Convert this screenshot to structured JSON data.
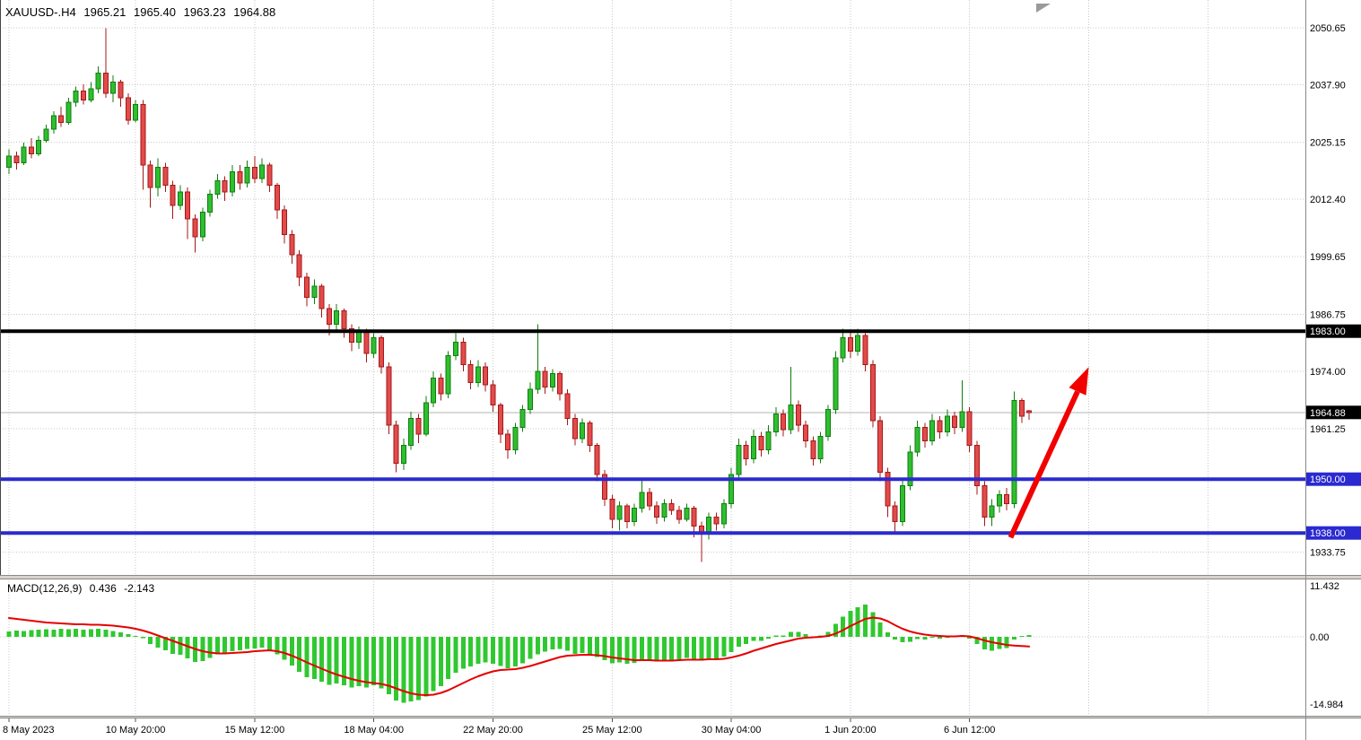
{
  "header": {
    "symbol_period": "XAUUSD-.H4",
    "open": "1965.21",
    "high": "1965.40",
    "low": "1963.23",
    "close": "1964.88"
  },
  "chart_data": {
    "type": "candlestick",
    "symbol": "XAUUSD",
    "timeframe": "H4",
    "legend_position": "none",
    "grid": true,
    "price_ylim": [
      1928.65,
      2056.85
    ],
    "x_axis": {
      "labels": [
        {
          "i": 0,
          "t": "8 May 2023",
          "anchor": "start"
        },
        {
          "i": 17,
          "t": "10 May 20:00"
        },
        {
          "i": 33,
          "t": "15 May 12:00"
        },
        {
          "i": 49,
          "t": "18 May 04:00"
        },
        {
          "i": 65,
          "t": "22 May 20:00"
        },
        {
          "i": 81,
          "t": "25 May 12:00"
        },
        {
          "i": 97,
          "t": "30 May 04:00"
        },
        {
          "i": 113,
          "t": "1 Jun 20:00"
        },
        {
          "i": 129,
          "t": "6 Jun 12:00"
        }
      ],
      "extra_grid_indices": [
        145,
        161
      ]
    },
    "y_axis": {
      "labels": [
        {
          "p": 2050.65,
          "t": "2050.65"
        },
        {
          "p": 2037.9,
          "t": "2037.90"
        },
        {
          "p": 2025.15,
          "t": "2025.15"
        },
        {
          "p": 2012.4,
          "t": "2012.40"
        },
        {
          "p": 1999.65,
          "t": "1999.65"
        },
        {
          "p": 1986.75,
          "t": "1986.75"
        },
        {
          "p": 1974.0,
          "t": "1974.00"
        },
        {
          "p": 1961.25,
          "t": "1961.25"
        },
        {
          "p": 1933.75,
          "t": "1933.75"
        }
      ]
    },
    "price_lines": [
      {
        "p": 1983.0,
        "t": "1983.00",
        "color": "#000000"
      },
      {
        "p": 1950.0,
        "t": "1950.00",
        "color": "#2A2AD0"
      },
      {
        "p": 1938.0,
        "t": "1938.00",
        "color": "#2A2AD0"
      }
    ],
    "current_price": {
      "p": 1964.88,
      "t": "1964.88",
      "box_color": "#000000"
    },
    "candles": [
      [
        2019.5,
        2023.5,
        2018,
        2022
      ],
      [
        2022,
        2023,
        2019,
        2020.5
      ],
      [
        2020.5,
        2025,
        2020,
        2024
      ],
      [
        2024,
        2026,
        2021.5,
        2022.5
      ],
      [
        2022.5,
        2026.5,
        2022,
        2025.5
      ],
      [
        2025.5,
        2029,
        2025,
        2028
      ],
      [
        2028,
        2032,
        2027,
        2031
      ],
      [
        2031,
        2033,
        2028.5,
        2029.5
      ],
      [
        2029.5,
        2035,
        2029,
        2034
      ],
      [
        2034,
        2037.5,
        2033,
        2036.5
      ],
      [
        2036.5,
        2038,
        2033.5,
        2034.5
      ],
      [
        2034.5,
        2038.5,
        2034,
        2037
      ],
      [
        2037,
        2042,
        2036,
        2040.5
      ],
      [
        2040.5,
        2050.5,
        2035,
        2036
      ],
      [
        2036,
        2040,
        2034,
        2038.5
      ],
      [
        2038.5,
        2039,
        2033,
        2035
      ],
      [
        2035,
        2036,
        2029,
        2030
      ],
      [
        2030,
        2034.5,
        2029.5,
        2033.5
      ],
      [
        2033.5,
        2034.5,
        2014.5,
        2020
      ],
      [
        2020,
        2021,
        2010.5,
        2015
      ],
      [
        2015,
        2021.5,
        2013,
        2019.5
      ],
      [
        2019.5,
        2020.5,
        2014,
        2015.5
      ],
      [
        2015.5,
        2016.5,
        2008,
        2011
      ],
      [
        2011,
        2015.5,
        2010,
        2014
      ],
      [
        2014,
        2015,
        2003.5,
        2008
      ],
      [
        2008,
        2009,
        2000.5,
        2004
      ],
      [
        2004,
        2010.5,
        2003,
        2009.5
      ],
      [
        2009.5,
        2014.5,
        2008.5,
        2013.5
      ],
      [
        2013.5,
        2018,
        2012.5,
        2016.5
      ],
      [
        2016.5,
        2017.5,
        2012,
        2014
      ],
      [
        2014,
        2020,
        2013,
        2018.5
      ],
      [
        2018.5,
        2020,
        2014.5,
        2016
      ],
      [
        2016,
        2021,
        2015,
        2019.5
      ],
      [
        2019.5,
        2022,
        2016,
        2017
      ],
      [
        2017,
        2021.5,
        2016,
        2020
      ],
      [
        2020,
        2020.5,
        2014,
        2015.5
      ],
      [
        2015.5,
        2016,
        2008,
        2010
      ],
      [
        2010,
        2011,
        2002.5,
        2004.5
      ],
      [
        2004.5,
        2005.5,
        1998,
        2000
      ],
      [
        2000,
        2001,
        1993,
        1995
      ],
      [
        1995,
        1996,
        1988.5,
        1990.5
      ],
      [
        1990.5,
        1994.5,
        1989,
        1993
      ],
      [
        1993,
        1993.5,
        1986,
        1988
      ],
      [
        1988,
        1989,
        1982,
        1984.5
      ],
      [
        1984.5,
        1989,
        1983,
        1987.5
      ],
      [
        1987.5,
        1988,
        1981.5,
        1983.5
      ],
      [
        1983.5,
        1984.5,
        1978.5,
        1980.5
      ],
      [
        1980.5,
        1984,
        1979,
        1983
      ],
      [
        1983,
        1983.5,
        1976,
        1978
      ],
      [
        1978,
        1982.5,
        1977,
        1981.5
      ],
      [
        1981.5,
        1982,
        1973.5,
        1975
      ],
      [
        1975,
        1976,
        1960,
        1962
      ],
      [
        1962,
        1963,
        1951.5,
        1953.5
      ],
      [
        1953.5,
        1959,
        1952,
        1957.5
      ],
      [
        1957.5,
        1965,
        1956.5,
        1963.5
      ],
      [
        1963.5,
        1964.5,
        1958,
        1960
      ],
      [
        1960,
        1968.5,
        1959.5,
        1967
      ],
      [
        1967,
        1974,
        1966,
        1972.5
      ],
      [
        1972.5,
        1973.5,
        1967.5,
        1969
      ],
      [
        1969,
        1978.5,
        1968,
        1977.5
      ],
      [
        1977.5,
        1982.5,
        1976.5,
        1980.5
      ],
      [
        1980.5,
        1981.5,
        1974,
        1975.5
      ],
      [
        1975.5,
        1976.5,
        1970,
        1971.5
      ],
      [
        1971.5,
        1976.5,
        1970.5,
        1975
      ],
      [
        1975,
        1976,
        1969.5,
        1971
      ],
      [
        1971,
        1972,
        1965,
        1966.5
      ],
      [
        1966.5,
        1967,
        1958,
        1960
      ],
      [
        1960,
        1961,
        1954.5,
        1956.5
      ],
      [
        1956.5,
        1962.5,
        1955.5,
        1961.5
      ],
      [
        1961.5,
        1966.5,
        1960.5,
        1965.5
      ],
      [
        1965.5,
        1971.5,
        1964.5,
        1970
      ],
      [
        1970,
        1984.5,
        1969,
        1974
      ],
      [
        1974,
        1975,
        1969,
        1970.5
      ],
      [
        1970.5,
        1974.5,
        1969.5,
        1973.5
      ],
      [
        1973.5,
        1974,
        1967.5,
        1969
      ],
      [
        1969,
        1970,
        1962,
        1963.5
      ],
      [
        1963.5,
        1964.5,
        1957.5,
        1959
      ],
      [
        1959,
        1963.5,
        1958,
        1962.5
      ],
      [
        1962.5,
        1963,
        1956,
        1957.5
      ],
      [
        1957.5,
        1958,
        1949.5,
        1951
      ],
      [
        1951,
        1952,
        1944,
        1945.5
      ],
      [
        1945.5,
        1946.5,
        1939,
        1941
      ],
      [
        1941,
        1945,
        1938.5,
        1944
      ],
      [
        1944,
        1944.5,
        1939,
        1940.5
      ],
      [
        1940.5,
        1944.5,
        1939.5,
        1943.5
      ],
      [
        1943.5,
        1950,
        1942.5,
        1947
      ],
      [
        1947,
        1948,
        1943,
        1944
      ],
      [
        1944,
        1945,
        1940,
        1941.5
      ],
      [
        1941.5,
        1945.5,
        1940.5,
        1944.5
      ],
      [
        1944.5,
        1945.5,
        1942,
        1943
      ],
      [
        1943,
        1944,
        1940,
        1941
      ],
      [
        1941,
        1944.5,
        1940.5,
        1943.5
      ],
      [
        1943.5,
        1944,
        1937,
        1939.5
      ],
      [
        1939.5,
        1940.5,
        1931.5,
        1938
      ],
      [
        1938,
        1942.5,
        1936.5,
        1941.5
      ],
      [
        1941.5,
        1942.5,
        1938.5,
        1940
      ],
      [
        1940,
        1945.5,
        1939,
        1944.5
      ],
      [
        1944.5,
        1952.5,
        1943.5,
        1951
      ],
      [
        1951,
        1959,
        1950,
        1957.5
      ],
      [
        1957.5,
        1958.5,
        1953,
        1954.5
      ],
      [
        1954.5,
        1961,
        1953.5,
        1959.5
      ],
      [
        1959.5,
        1960.5,
        1955,
        1956.5
      ],
      [
        1956.5,
        1962,
        1955.5,
        1960.5
      ],
      [
        1960.5,
        1966,
        1959.5,
        1964.5
      ],
      [
        1964.5,
        1965.5,
        1959.5,
        1961
      ],
      [
        1961,
        1975,
        1960,
        1966.5
      ],
      [
        1966.5,
        1967.5,
        1960.5,
        1962
      ],
      [
        1962,
        1963,
        1957,
        1958.5
      ],
      [
        1958.5,
        1959.5,
        1953,
        1954.5
      ],
      [
        1954.5,
        1960.5,
        1953.5,
        1959.5
      ],
      [
        1959.5,
        1966.5,
        1958.5,
        1965.5
      ],
      [
        1965.5,
        1978.5,
        1964.5,
        1977
      ],
      [
        1977,
        1983.5,
        1976,
        1981.5
      ],
      [
        1981.5,
        1983,
        1977,
        1978.5
      ],
      [
        1978.5,
        1983.5,
        1977.5,
        1982
      ],
      [
        1982,
        1982.5,
        1974,
        1975.5
      ],
      [
        1975.5,
        1976.5,
        1961.5,
        1963
      ],
      [
        1963,
        1964,
        1949.5,
        1951.5
      ],
      [
        1951.5,
        1952.5,
        1941.5,
        1944
      ],
      [
        1944,
        1945,
        1938,
        1940.5
      ],
      [
        1940.5,
        1950,
        1939.5,
        1948.5
      ],
      [
        1948.5,
        1957.5,
        1947.5,
        1956
      ],
      [
        1956,
        1963,
        1955,
        1961.5
      ],
      [
        1961.5,
        1962.5,
        1957,
        1958.5
      ],
      [
        1958.5,
        1964.5,
        1957.5,
        1963
      ],
      [
        1963,
        1964,
        1959,
        1960.5
      ],
      [
        1960.5,
        1965.5,
        1959.5,
        1964
      ],
      [
        1964,
        1965,
        1960,
        1961.5
      ],
      [
        1961.5,
        1972,
        1960.5,
        1965
      ],
      [
        1965,
        1966,
        1956,
        1957.5
      ],
      [
        1957.5,
        1958.5,
        1946.5,
        1948.5
      ],
      [
        1948.5,
        1949.5,
        1939.5,
        1941.5
      ],
      [
        1941.5,
        1945.5,
        1939.5,
        1944
      ],
      [
        1944,
        1947.5,
        1942.5,
        1946.5
      ],
      [
        1946.5,
        1948,
        1943,
        1944.5
      ],
      [
        1944.5,
        1969.5,
        1943.5,
        1967.5
      ],
      [
        1967.5,
        1968,
        1962.5,
        1964
      ],
      [
        1965.21,
        1965.4,
        1963.23,
        1964.88
      ]
    ],
    "macd": {
      "name": "MACD(12,26,9)",
      "value_main": "0.436",
      "value_signal": "-2.143",
      "ylim": [
        -17.6,
        12.6
      ],
      "y_labels": [
        {
          "v": 11.432,
          "t": "11.432"
        },
        {
          "v": 0,
          "t": "0.00"
        },
        {
          "v": -14.984,
          "t": "-14.984"
        }
      ],
      "histogram": [
        1.2,
        1.4,
        1.3,
        1.5,
        1.6,
        1.7,
        1.6,
        1.8,
        1.7,
        1.8,
        1.6,
        1.7,
        1.8,
        1.6,
        1.3,
        1.0,
        0.6,
        0.2,
        -0.3,
        -1.6,
        -2.4,
        -3.0,
        -3.8,
        -4.0,
        -4.8,
        -5.6,
        -5.4,
        -4.7,
        -3.9,
        -3.7,
        -3.2,
        -3.0,
        -2.7,
        -2.6,
        -2.4,
        -2.9,
        -3.9,
        -5.1,
        -6.4,
        -7.8,
        -9.0,
        -9.4,
        -10.0,
        -10.7,
        -10.4,
        -10.8,
        -11.3,
        -11.0,
        -11.3,
        -10.8,
        -11.5,
        -12.8,
        -14.2,
        -14.7,
        -14.4,
        -14.1,
        -13.3,
        -12.1,
        -11.0,
        -9.4,
        -8.0,
        -7.1,
        -6.6,
        -6.0,
        -5.7,
        -6.0,
        -6.5,
        -7.0,
        -6.6,
        -5.9,
        -4.9,
        -3.9,
        -3.3,
        -2.8,
        -2.7,
        -3.1,
        -3.8,
        -3.6,
        -3.9,
        -4.5,
        -5.2,
        -5.9,
        -5.7,
        -6.0,
        -5.8,
        -5.3,
        -5.2,
        -5.5,
        -5.2,
        -5.3,
        -5.0,
        -4.7,
        -5.0,
        -5.3,
        -4.8,
        -4.9,
        -4.4,
        -3.4,
        -2.2,
        -1.6,
        -0.9,
        -0.9,
        -0.4,
        0.3,
        0.3,
        1.1,
        1.1,
        0.6,
        0.1,
        0.3,
        1.1,
        2.9,
        4.5,
        5.8,
        6.6,
        7.2,
        5.5,
        3.2,
        1.0,
        -0.6,
        -1.2,
        -1.1,
        -0.5,
        -0.6,
        -0.2,
        -0.4,
        0.0,
        0.1,
        0.4,
        -0.4,
        -1.6,
        -2.8,
        -3.1,
        -2.7,
        -2.5,
        -0.6,
        0.2,
        0.436
      ],
      "signal": [
        4.2,
        4.0,
        3.8,
        3.6,
        3.4,
        3.2,
        3.1,
        3.0,
        2.9,
        2.8,
        2.8,
        2.7,
        2.7,
        2.6,
        2.5,
        2.3,
        2.1,
        1.8,
        1.4,
        0.9,
        0.3,
        -0.3,
        -0.9,
        -1.5,
        -2.1,
        -2.7,
        -3.2,
        -3.5,
        -3.7,
        -3.7,
        -3.6,
        -3.5,
        -3.4,
        -3.2,
        -3.1,
        -3.0,
        -3.2,
        -3.6,
        -4.2,
        -4.9,
        -5.7,
        -6.4,
        -7.1,
        -7.8,
        -8.4,
        -8.9,
        -9.4,
        -9.8,
        -10.1,
        -10.3,
        -10.5,
        -10.9,
        -11.5,
        -12.1,
        -12.6,
        -12.9,
        -13.0,
        -12.9,
        -12.5,
        -11.9,
        -11.1,
        -10.3,
        -9.5,
        -8.8,
        -8.2,
        -7.7,
        -7.4,
        -7.3,
        -7.2,
        -6.9,
        -6.5,
        -6.0,
        -5.5,
        -5.0,
        -4.5,
        -4.2,
        -4.1,
        -4.0,
        -4.0,
        -4.1,
        -4.3,
        -4.6,
        -4.8,
        -5.0,
        -5.2,
        -5.2,
        -5.2,
        -5.3,
        -5.3,
        -5.3,
        -5.2,
        -5.1,
        -5.1,
        -5.1,
        -5.0,
        -5.0,
        -4.9,
        -4.6,
        -4.2,
        -3.7,
        -3.1,
        -2.6,
        -2.1,
        -1.6,
        -1.2,
        -0.8,
        -0.4,
        -0.2,
        -0.1,
        0.0,
        0.2,
        0.7,
        1.5,
        2.4,
        3.2,
        4.0,
        4.3,
        4.1,
        3.5,
        2.6,
        1.8,
        1.2,
        0.8,
        0.5,
        0.3,
        0.2,
        0.1,
        0.1,
        0.2,
        0.1,
        -0.3,
        -0.8,
        -1.2,
        -1.5,
        -1.8,
        -1.95,
        -2.05,
        -2.143
      ]
    },
    "arrow": {
      "start": {
        "i": 134.5,
        "p": 1937.0
      },
      "end": {
        "i": 145,
        "p": 1975.0
      },
      "color": "#F20000"
    },
    "style": {
      "bull_fill": "#2FBE2F",
      "bull_stroke": "#0F7D0F",
      "bear_fill": "#E24B4B",
      "bear_stroke": "#A51717",
      "hist_color": "#30C830",
      "signal_color": "#E60000",
      "grid_color": "#C9C9C9",
      "blue_line": "#2A2AD0",
      "black_line": "#000000"
    }
  }
}
